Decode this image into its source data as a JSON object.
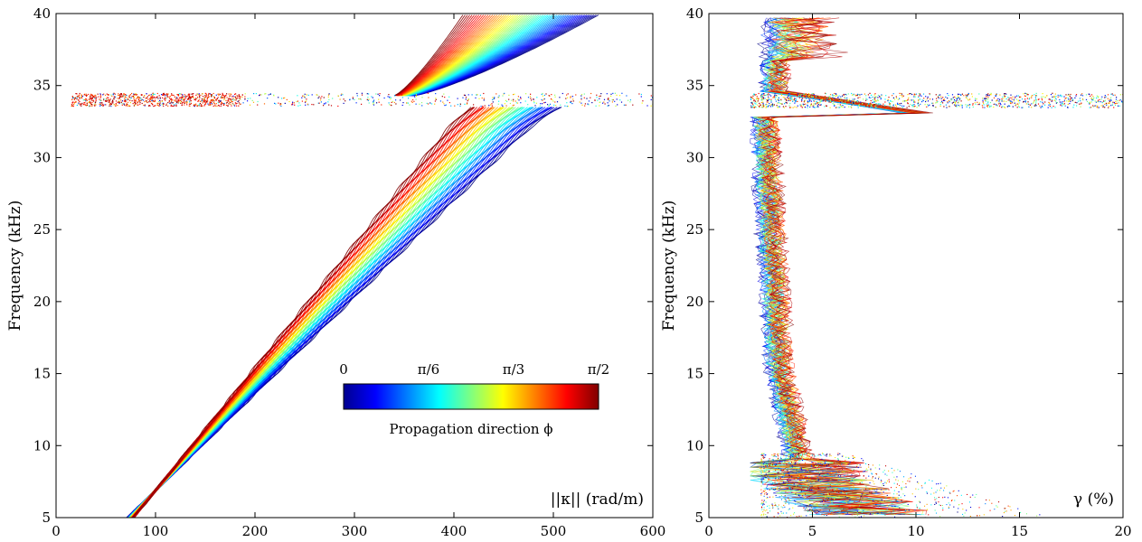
{
  "chart_data": [
    {
      "type": "scatter",
      "panel": "left",
      "xlabel": "||κ|| (rad/m)",
      "ylabel": "Frequency (kHz)",
      "xlim": [
        0,
        600
      ],
      "ylim": [
        5,
        40
      ],
      "xticks": [
        "0",
        "100",
        "200",
        "300",
        "400",
        "500",
        "600"
      ],
      "yticks": [
        "5",
        "10",
        "15",
        "20",
        "25",
        "30",
        "35",
        "40"
      ],
      "grid": false,
      "colormap": "jet",
      "band_gap_khz": [
        33.7,
        34.3
      ],
      "lower_branch": {
        "start_freq_khz": 5,
        "end_freq_khz": 33.6,
        "phi_0_kappa_at_5khz": 72,
        "phi_0_kappa_at_33khz": 490,
        "phi_pi2_kappa_at_5khz": 78,
        "phi_pi2_kappa_at_33khz": 405
      },
      "upper_branch": {
        "start_freq_khz": 34.3,
        "end_freq_khz": 40,
        "phi_0_kappa_at_34khz": 360,
        "phi_0_kappa_at_40khz": 548,
        "phi_pi2_kappa_at_34khz": 340,
        "phi_pi2_kappa_at_40khz": 410
      },
      "colorbar": {
        "ticks": [
          "0",
          "π/6",
          "π/3",
          "π/2"
        ],
        "label": "Propagation direction ϕ",
        "range": [
          0,
          1.5708
        ]
      }
    },
    {
      "type": "scatter",
      "panel": "right",
      "xlabel": "γ (%)",
      "ylabel": "Frequency (kHz)",
      "xlim": [
        0,
        20
      ],
      "ylim": [
        5,
        40
      ],
      "xticks": [
        "0",
        "5",
        "10",
        "15",
        "20"
      ],
      "yticks": [
        "5",
        "10",
        "15",
        "20",
        "25",
        "30",
        "35",
        "40"
      ],
      "grid": false,
      "colormap": "jet",
      "typical_gamma_pct": {
        "at_5khz": 8,
        "at_8khz": 5,
        "at_15khz": 3.5,
        "at_25khz": 3,
        "at_32khz": 2.5,
        "at_34khz": 12,
        "at_38khz": 3
      }
    }
  ]
}
